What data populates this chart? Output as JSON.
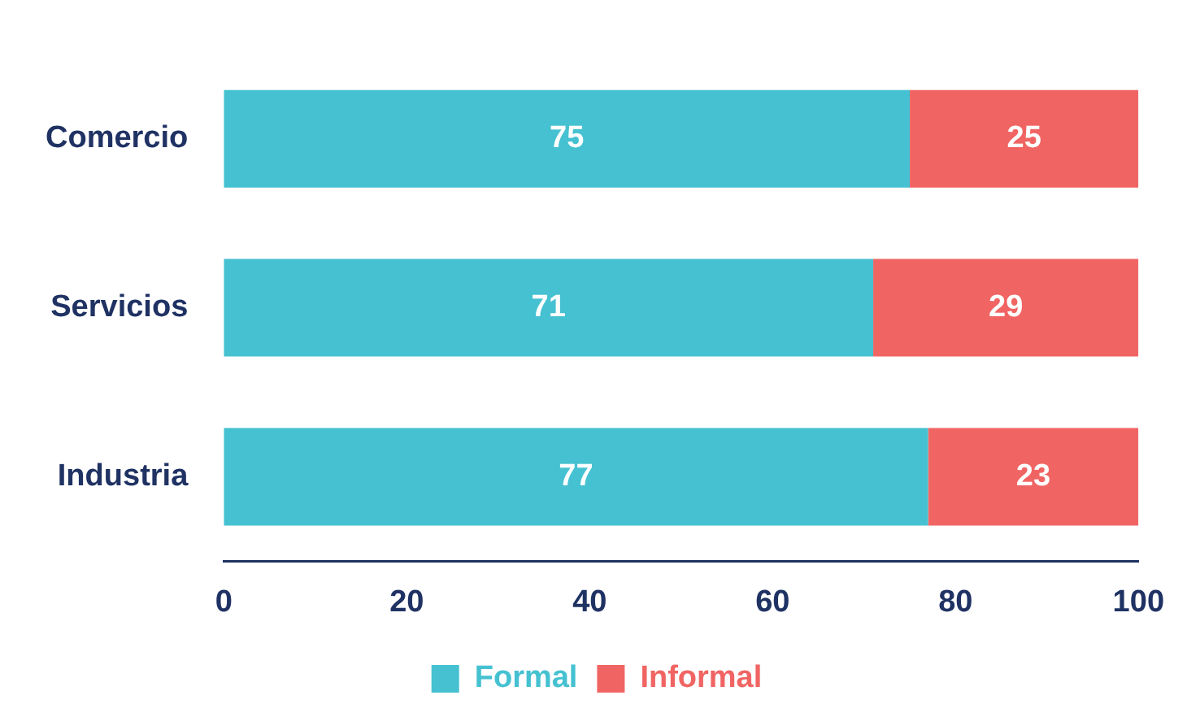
{
  "chart_data": {
    "type": "bar",
    "orientation": "horizontal",
    "stacked": true,
    "categories": [
      "Comercio",
      "Servicios",
      "Industria"
    ],
    "series": [
      {
        "name": "Formal",
        "color": "#45c1d1",
        "values": [
          75,
          71,
          77
        ]
      },
      {
        "name": "Informal",
        "color": "#f06563",
        "values": [
          25,
          29,
          23
        ]
      }
    ],
    "xlim": [
      0,
      100
    ],
    "xticks": [
      0,
      20,
      40,
      60,
      80,
      100
    ],
    "grid": false,
    "legend": "bottom",
    "data_labels": true
  }
}
